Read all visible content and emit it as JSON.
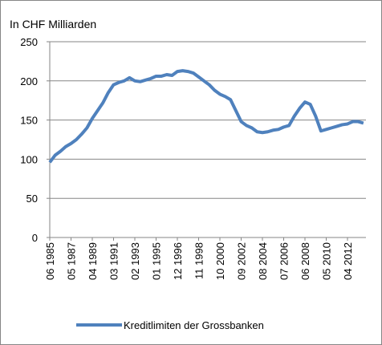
{
  "chart_data": {
    "type": "line",
    "title": "In CHF Milliarden",
    "categories": [
      "06 1985",
      null,
      null,
      null,
      "05 1987",
      null,
      null,
      null,
      "04 1989",
      null,
      null,
      null,
      "03 1991",
      null,
      null,
      null,
      "02 1993",
      null,
      null,
      null,
      "01 1995",
      null,
      null,
      null,
      "12 1996",
      null,
      null,
      null,
      "11 1998",
      null,
      null,
      null,
      "10 2000",
      null,
      null,
      null,
      "09 2002",
      null,
      null,
      null,
      "08 2004",
      null,
      null,
      null,
      "07 2006",
      null,
      null,
      null,
      "06 2008",
      null,
      null,
      null,
      "05 2010",
      null,
      null,
      null,
      "04 2012",
      null,
      null,
      null
    ],
    "series": [
      {
        "name": "Kreditlimiten der Grossbanken",
        "color": "#4f81bd",
        "values": [
          96,
          105,
          110,
          116,
          120,
          125,
          132,
          140,
          152,
          162,
          172,
          185,
          195,
          198,
          200,
          204,
          200,
          199,
          201,
          203,
          206,
          206,
          208,
          207,
          212,
          213,
          212,
          210,
          205,
          200,
          195,
          188,
          183,
          180,
          176,
          162,
          148,
          143,
          140,
          135,
          134,
          135,
          137,
          138,
          141,
          143,
          155,
          165,
          173,
          170,
          155,
          136,
          138,
          140,
          142,
          144,
          145,
          148,
          148,
          146
        ]
      }
    ],
    "ylim": [
      0,
      250
    ],
    "yticks": [
      0,
      50,
      100,
      150,
      200,
      250
    ],
    "grid": true,
    "legend": "bottom"
  }
}
